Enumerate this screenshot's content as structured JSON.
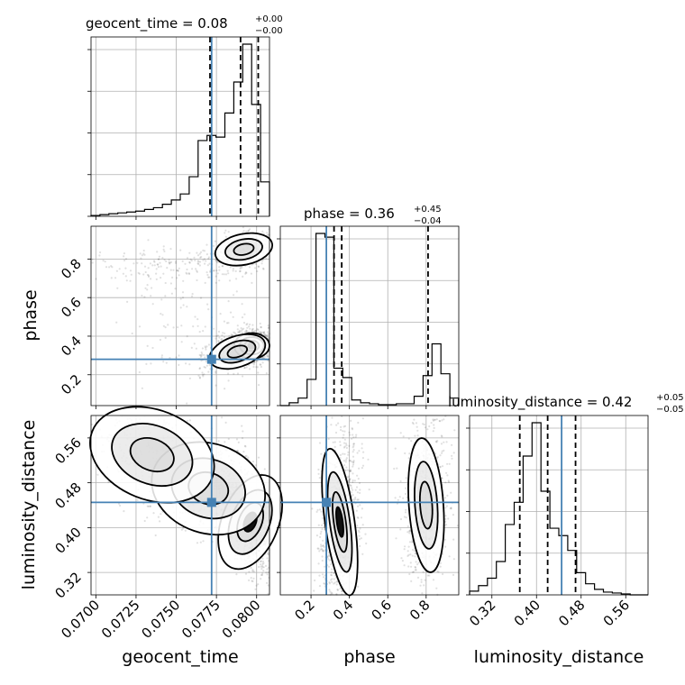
{
  "chart_data": {
    "type": "corner",
    "parameters": [
      "geocent_time",
      "phase",
      "luminosity_distance"
    ],
    "titles": [
      {
        "param": "geocent_time",
        "text": "geocent_time = 0.08",
        "plus": "+0.00",
        "minus": "−0.00"
      },
      {
        "param": "phase",
        "text": "phase = 0.36",
        "plus": "+0.45",
        "minus": "−0.04"
      },
      {
        "param": "luminosity_distance",
        "text": "luminosity_distance = 0.42",
        "plus": "+0.05",
        "minus": "−0.05"
      }
    ],
    "ranges": {
      "geocent_time": [
        0.0697,
        0.0808
      ],
      "phase": [
        0.04,
        0.97
      ],
      "luminosity_distance": [
        0.28,
        0.6
      ]
    },
    "ticks": {
      "geocent_time": {
        "values": [
          0.07,
          0.0725,
          0.075,
          0.0775,
          0.08
        ],
        "labels": [
          "0.0700",
          "0.0725",
          "0.0750",
          "0.0775",
          "0.0800"
        ]
      },
      "phase": {
        "values": [
          0.2,
          0.4,
          0.6,
          0.8
        ],
        "labels": [
          "0.2",
          "0.4",
          "0.6",
          "0.8"
        ]
      },
      "luminosity_distance": {
        "values": [
          0.32,
          0.4,
          0.48,
          0.56
        ],
        "labels": [
          "0.32",
          "0.40",
          "0.48",
          "0.56"
        ]
      }
    },
    "truths": {
      "geocent_time": 0.0772,
      "phase": 0.28,
      "luminosity_distance": 0.445
    },
    "quantiles": {
      "geocent_time": [
        0.0771,
        0.079,
        0.0801
      ],
      "phase": [
        0.32,
        0.36,
        0.81
      ],
      "luminosity_distance": [
        0.37,
        0.42,
        0.47
      ]
    },
    "histograms": {
      "geocent_time": [
        0.005,
        0.01,
        0.015,
        0.02,
        0.025,
        0.03,
        0.04,
        0.05,
        0.07,
        0.095,
        0.13,
        0.23,
        0.44,
        0.47,
        0.46,
        0.6,
        0.78,
        1.0,
        0.65,
        0.2
      ],
      "phase": [
        0.0,
        0.015,
        0.04,
        0.14,
        0.92,
        0.9,
        0.2,
        0.15,
        0.03,
        0.015,
        0.01,
        0.005,
        0.005,
        0.01,
        0.01,
        0.05,
        0.16,
        0.33,
        0.17,
        0.04
      ],
      "luminosity_distance": [
        0.02,
        0.05,
        0.09,
        0.18,
        0.38,
        0.5,
        0.75,
        0.93,
        0.56,
        0.36,
        0.32,
        0.24,
        0.12,
        0.06,
        0.03,
        0.015,
        0.01,
        0.005,
        0.0,
        0.0
      ]
    },
    "grid": true,
    "contour_levels": [
      "0.5σ",
      "1σ",
      "1.5σ",
      "2σ"
    ]
  }
}
